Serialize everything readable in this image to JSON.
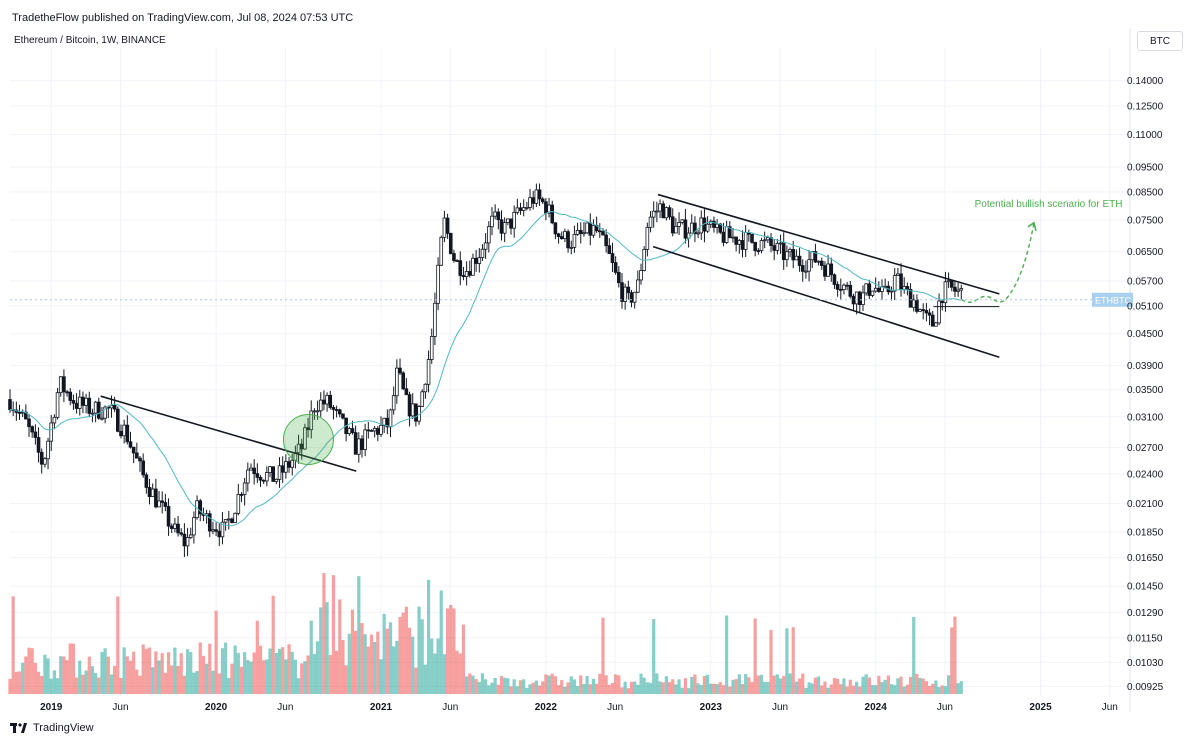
{
  "header": {
    "published_line": "TradetheFlow published on TradingView.com, Jul 08, 2024 07:53 UTC",
    "symbol_line": "Ethereum / Bitcoin, 1W, BINANCE",
    "currency_button": "BTC"
  },
  "footer": {
    "brand": "TradingView"
  },
  "colors": {
    "up": "#26a69a",
    "down": "#ef5350",
    "candle": "#131722",
    "ma": "#4fb8c4",
    "annotation": "#4caf50",
    "price_label_bg": "#a8d0f0"
  },
  "chart_data": {
    "type": "candlestick",
    "symbol": "ETHBTC",
    "timeframe": "1W",
    "exchange": "BINANCE",
    "yscale": "log",
    "ylim": [
      0.0089,
      0.155
    ],
    "xlim": [
      2018.75,
      2025.5
    ],
    "y_ticks": [
      "0.14000",
      "0.12500",
      "0.11000",
      "0.09500",
      "0.08500",
      "0.07500",
      "0.06500",
      "0.05700",
      "0.05100",
      "0.04500",
      "0.03900",
      "0.03500",
      "0.03100",
      "0.02700",
      "0.02400",
      "0.02100",
      "0.01850",
      "0.01650",
      "0.01450",
      "0.01290",
      "0.01150",
      "0.01030",
      "0.00925"
    ],
    "x_ticks": [
      {
        "label": "2019",
        "t": 2019.0,
        "year": true
      },
      {
        "label": "Jun",
        "t": 2019.42,
        "year": false
      },
      {
        "label": "2020",
        "t": 2020.0,
        "year": true
      },
      {
        "label": "Jun",
        "t": 2020.42,
        "year": false
      },
      {
        "label": "2021",
        "t": 2021.0,
        "year": true
      },
      {
        "label": "Jun",
        "t": 2021.42,
        "year": false
      },
      {
        "label": "2022",
        "t": 2022.0,
        "year": true
      },
      {
        "label": "Jun",
        "t": 2022.42,
        "year": false
      },
      {
        "label": "2023",
        "t": 2023.0,
        "year": true
      },
      {
        "label": "Jun",
        "t": 2023.42,
        "year": false
      },
      {
        "label": "2024",
        "t": 2024.0,
        "year": true
      },
      {
        "label": "Jun",
        "t": 2024.42,
        "year": false
      },
      {
        "label": "2025",
        "t": 2025.0,
        "year": true
      },
      {
        "label": "Jun",
        "t": 2025.42,
        "year": false
      }
    ],
    "price_path": [
      [
        2018.75,
        0.0335
      ],
      [
        2018.85,
        0.03
      ],
      [
        2018.95,
        0.025
      ],
      [
        2019.05,
        0.036
      ],
      [
        2019.15,
        0.033
      ],
      [
        2019.25,
        0.032
      ],
      [
        2019.35,
        0.032
      ],
      [
        2019.45,
        0.029
      ],
      [
        2019.55,
        0.024
      ],
      [
        2019.65,
        0.021
      ],
      [
        2019.75,
        0.0185
      ],
      [
        2019.82,
        0.0175
      ],
      [
        2019.88,
        0.0205
      ],
      [
        2019.95,
        0.0195
      ],
      [
        2020.05,
        0.0185
      ],
      [
        2020.12,
        0.021
      ],
      [
        2020.2,
        0.025
      ],
      [
        2020.28,
        0.024
      ],
      [
        2020.36,
        0.0235
      ],
      [
        2020.44,
        0.025
      ],
      [
        2020.52,
        0.027
      ],
      [
        2020.6,
        0.033
      ],
      [
        2020.68,
        0.033
      ],
      [
        2020.76,
        0.03
      ],
      [
        2020.85,
        0.027
      ],
      [
        2020.95,
        0.029
      ],
      [
        2021.05,
        0.03
      ],
      [
        2021.1,
        0.038
      ],
      [
        2021.15,
        0.033
      ],
      [
        2021.22,
        0.031
      ],
      [
        2021.3,
        0.042
      ],
      [
        2021.38,
        0.075
      ],
      [
        2021.45,
        0.062
      ],
      [
        2021.52,
        0.06
      ],
      [
        2021.6,
        0.065
      ],
      [
        2021.68,
        0.075
      ],
      [
        2021.75,
        0.072
      ],
      [
        2021.85,
        0.078
      ],
      [
        2021.93,
        0.083
      ],
      [
        2022.0,
        0.08
      ],
      [
        2022.08,
        0.07
      ],
      [
        2022.15,
        0.068
      ],
      [
        2022.22,
        0.07
      ],
      [
        2022.3,
        0.072
      ],
      [
        2022.38,
        0.064
      ],
      [
        2022.45,
        0.055
      ],
      [
        2022.5,
        0.052
      ],
      [
        2022.56,
        0.056
      ],
      [
        2022.62,
        0.075
      ],
      [
        2022.7,
        0.08
      ],
      [
        2022.78,
        0.072
      ],
      [
        2022.86,
        0.072
      ],
      [
        2022.95,
        0.074
      ],
      [
        2023.05,
        0.07
      ],
      [
        2023.15,
        0.069
      ],
      [
        2023.25,
        0.068
      ],
      [
        2023.35,
        0.067
      ],
      [
        2023.45,
        0.064
      ],
      [
        2023.55,
        0.062
      ],
      [
        2023.65,
        0.063
      ],
      [
        2023.75,
        0.058
      ],
      [
        2023.85,
        0.054
      ],
      [
        2023.92,
        0.053
      ],
      [
        2023.98,
        0.056
      ],
      [
        2024.05,
        0.053
      ],
      [
        2024.12,
        0.058
      ],
      [
        2024.18,
        0.054
      ],
      [
        2024.24,
        0.052
      ],
      [
        2024.3,
        0.048
      ],
      [
        2024.35,
        0.047
      ],
      [
        2024.4,
        0.054
      ],
      [
        2024.45,
        0.055
      ],
      [
        2024.52,
        0.054
      ]
    ],
    "last_price": 0.0524,
    "last_price_label": "ETHBTC",
    "volume_max": 1.0,
    "annotations": [
      {
        "type": "trendline",
        "from": [
          2019.3,
          0.034
        ],
        "to": [
          2020.85,
          0.0243
        ]
      },
      {
        "type": "trendline",
        "from": [
          2022.68,
          0.084
        ],
        "to": [
          2024.75,
          0.0538
        ]
      },
      {
        "type": "trendline",
        "from": [
          2022.65,
          0.0665
        ],
        "to": [
          2024.75,
          0.0405
        ]
      },
      {
        "type": "hline",
        "from": [
          2024.35,
          0.0508
        ],
        "to": [
          2024.75,
          0.0508
        ]
      },
      {
        "type": "circle",
        "center": [
          2020.56,
          0.028
        ],
        "label": ""
      },
      {
        "type": "text",
        "text": "Potential bullish scenario for ETH",
        "at": [
          2024.6,
          0.0795
        ]
      }
    ]
  }
}
